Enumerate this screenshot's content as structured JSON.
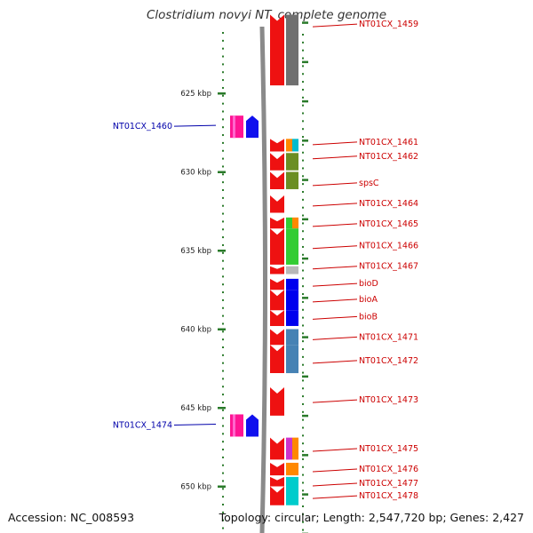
{
  "title": "Clostridium novyi NT, complete genome",
  "accession": "Accession: NC_008593",
  "topology": "Topology: circular; Length: 2,547,720 bp; Genes: 2,427",
  "colors": {
    "red": "#ee1111",
    "gray": "#707070",
    "blue_label": "#0000aa",
    "red_label": "#cc0000",
    "tick": "#2a7a2a"
  },
  "scale": [
    {
      "label": "625 kbp",
      "kbp": 625
    },
    {
      "label": "630 kbp",
      "kbp": 630
    },
    {
      "label": "635 kbp",
      "kbp": 635
    },
    {
      "label": "640 kbp",
      "kbp": 640
    },
    {
      "label": "645 kbp",
      "kbp": 645
    },
    {
      "label": "650 kbp",
      "kbp": 650
    }
  ],
  "reverse_genes": [
    {
      "label": "NT01CX_1460",
      "kbp": 627.1
    },
    {
      "label": "NT01CX_1474",
      "kbp": 646.1
    }
  ],
  "forward_genes": [
    {
      "label": "NT01CX_1459",
      "kbp": 620.6,
      "start": 620.0,
      "end": 624.5,
      "cog": [
        "#707070"
      ]
    },
    {
      "label": "NT01CX_1461",
      "kbp": 628.1,
      "start": 627.9,
      "end": 628.7,
      "cog": [
        "#ff8800",
        "#00bbcc"
      ]
    },
    {
      "label": "NT01CX_1462",
      "kbp": 629.0,
      "start": 628.8,
      "end": 629.9,
      "cog": [
        "#6b8e23"
      ]
    },
    {
      "label": "spsC",
      "kbp": 630.7,
      "start": 630.0,
      "end": 631.1,
      "cog": [
        "#6b8e23"
      ]
    },
    {
      "label": "NT01CX_1464",
      "kbp": 632.0,
      "start": 631.5,
      "end": 632.6,
      "cog": []
    },
    {
      "label": "NT01CX_1465",
      "kbp": 633.3,
      "start": 632.9,
      "end": 633.6,
      "cog": [
        "#33cc33",
        "#ff8800"
      ]
    },
    {
      "label": "NT01CX_1466",
      "kbp": 634.7,
      "start": 633.6,
      "end": 635.9,
      "cog": [
        "#33cc33"
      ]
    },
    {
      "label": "NT01CX_1467",
      "kbp": 636.0,
      "start": 636.0,
      "end": 636.5,
      "cog": [
        "#b8b8b8"
      ]
    },
    {
      "label": "bioD",
      "kbp": 637.1,
      "start": 636.8,
      "end": 637.5,
      "cog": [
        "#0000ee"
      ]
    },
    {
      "label": "bioA",
      "kbp": 638.1,
      "start": 637.5,
      "end": 638.8,
      "cog": [
        "#0000ee"
      ]
    },
    {
      "label": "bioB",
      "kbp": 639.2,
      "start": 638.8,
      "end": 639.8,
      "cog": [
        "#0000ee"
      ]
    },
    {
      "label": "NT01CX_1471",
      "kbp": 640.5,
      "start": 640.0,
      "end": 641.0,
      "cog": [
        "#4682b4"
      ]
    },
    {
      "label": "NT01CX_1472",
      "kbp": 642.0,
      "start": 641.0,
      "end": 642.8,
      "cog": [
        "#4682b4"
      ]
    },
    {
      "label": "NT01CX_1473",
      "kbp": 644.5,
      "start": 643.7,
      "end": 645.5,
      "cog": []
    },
    {
      "label": "NT01CX_1475",
      "kbp": 647.6,
      "start": 646.9,
      "end": 648.3,
      "cog": [
        "#cc33cc",
        "#ff8800"
      ]
    },
    {
      "label": "NT01CX_1476",
      "kbp": 648.9,
      "start": 648.5,
      "end": 649.3,
      "cog": [
        "#ff8800"
      ]
    },
    {
      "label": "NT01CX_1477",
      "kbp": 649.8,
      "start": 649.4,
      "end": 650.0,
      "cog": [
        "#00cccc"
      ]
    },
    {
      "label": "NT01CX_1478",
      "kbp": 650.6,
      "start": 650.0,
      "end": 651.2,
      "cog": [
        "#00cccc"
      ]
    }
  ]
}
